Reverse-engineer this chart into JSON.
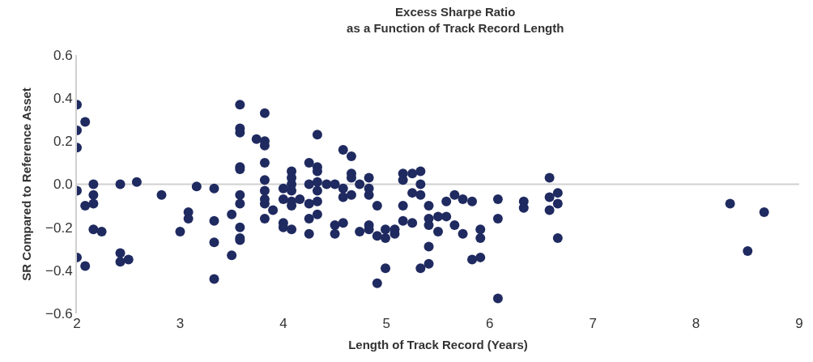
{
  "chart_data": {
    "type": "scatter",
    "title": "Excess Sharpe Ratio\nas a Function of Track Record Length",
    "xlabel": "Length of Track Record (Years)",
    "ylabel": "SR Compared to Reference Asset",
    "marker": "circle",
    "grid": false,
    "ref_lines": [
      {
        "axis": "y",
        "value": 0,
        "color": "#d0d0d0"
      }
    ],
    "xlim": [
      2,
      9
    ],
    "xticks": [
      2,
      3,
      4,
      5,
      6,
      7,
      8,
      9
    ],
    "ylim": [
      -0.6,
      0.6
    ],
    "yticks": [
      {
        "value": -0.6,
        "label": "−0.6"
      },
      {
        "value": -0.4,
        "label": "−0.4"
      },
      {
        "value": -0.2,
        "label": "−0.2"
      },
      {
        "value": 0,
        "label": "0.0"
      },
      0.2,
      0.4,
      0.6
    ],
    "series": [
      {
        "color": "#1f2a60",
        "x": [
          2,
          2,
          2,
          2,
          2,
          2.08,
          2.08,
          2.08,
          2.16,
          2.16,
          2.16,
          2.16,
          2.24,
          2.42,
          2.42,
          2.42,
          2.5,
          2.58,
          2.82,
          3.0,
          3.08,
          3.08,
          3.16,
          3.33,
          3.33,
          3.33,
          3.33,
          3.5,
          3.5,
          3.58,
          3.58,
          3.58,
          3.58,
          3.58,
          3.58,
          3.58,
          3.58,
          3.58,
          3.58,
          3.74,
          3.82,
          3.82,
          3.82,
          3.82,
          3.82,
          3.82,
          3.82,
          3.82,
          3.82,
          3.9,
          4.0,
          4.0,
          4.0,
          4.0,
          4.08,
          4.08,
          4.08,
          4.08,
          4.08,
          4.08,
          4.08,
          4.16,
          4.25,
          4.25,
          4.25,
          4.25,
          4.25,
          4.33,
          4.33,
          4.33,
          4.33,
          4.33,
          4.33,
          4.33,
          4.42,
          4.5,
          4.5,
          4.5,
          4.58,
          4.58,
          4.58,
          4.58,
          4.66,
          4.66,
          4.66,
          4.66,
          4.74,
          4.74,
          4.83,
          4.83,
          4.83,
          4.83,
          4.83,
          4.91,
          4.91,
          4.91,
          4.99,
          4.99,
          4.99,
          5.08,
          5.08,
          5.16,
          5.16,
          5.16,
          5.16,
          5.25,
          5.25,
          5.25,
          5.33,
          5.33,
          5.33,
          5.33,
          5.41,
          5.41,
          5.41,
          5.41,
          5.41,
          5.5,
          5.5,
          5.58,
          5.58,
          5.66,
          5.66,
          5.74,
          5.74,
          5.83,
          5.83,
          5.91,
          5.91,
          5.91,
          6.08,
          6.08,
          6.08,
          6.33,
          6.33,
          6.58,
          6.58,
          6.58,
          6.66,
          6.66,
          6.66,
          8.33,
          8.5,
          8.66
        ],
        "values": [
          0.37,
          0.25,
          0.17,
          -0.03,
          -0.34,
          0.29,
          -0.1,
          -0.38,
          0,
          -0.05,
          -0.09,
          -0.21,
          -0.22,
          0,
          -0.32,
          -0.36,
          -0.35,
          0.01,
          -0.05,
          -0.22,
          -0.13,
          -0.16,
          -0.01,
          -0.02,
          -0.17,
          -0.27,
          -0.44,
          -0.14,
          -0.33,
          0.37,
          0.26,
          0.24,
          0.08,
          0.07,
          -0.05,
          -0.09,
          -0.2,
          -0.25,
          -0.26,
          0.21,
          0.33,
          0.2,
          0.18,
          0.1,
          0.02,
          -0.03,
          -0.07,
          -0.09,
          -0.16,
          -0.12,
          -0.02,
          -0.07,
          -0.18,
          -0.2,
          0.06,
          0.03,
          0,
          -0.03,
          -0.08,
          -0.1,
          -0.21,
          -0.07,
          0.1,
          0,
          -0.09,
          -0.16,
          -0.23,
          0.23,
          0.08,
          0.06,
          0.01,
          -0.03,
          -0.08,
          -0.14,
          0,
          0,
          -0.19,
          -0.23,
          0.16,
          -0.02,
          -0.06,
          -0.18,
          0.13,
          0.05,
          0.03,
          -0.05,
          0,
          -0.22,
          0.03,
          -0.02,
          -0.05,
          -0.19,
          -0.21,
          -0.1,
          -0.24,
          -0.46,
          -0.21,
          -0.25,
          -0.39,
          -0.21,
          -0.23,
          0.05,
          0.02,
          -0.1,
          -0.17,
          0.05,
          -0.04,
          -0.18,
          0.06,
          0,
          -0.05,
          -0.39,
          -0.1,
          -0.16,
          -0.19,
          -0.29,
          -0.37,
          -0.15,
          -0.22,
          -0.08,
          -0.15,
          -0.05,
          -0.19,
          -0.07,
          -0.23,
          -0.08,
          -0.35,
          -0.21,
          -0.25,
          -0.34,
          -0.07,
          -0.16,
          -0.53,
          -0.08,
          -0.11,
          0.03,
          -0.06,
          -0.12,
          -0.04,
          -0.09,
          -0.25,
          -0.09,
          -0.31,
          -0.13
        ]
      }
    ]
  }
}
